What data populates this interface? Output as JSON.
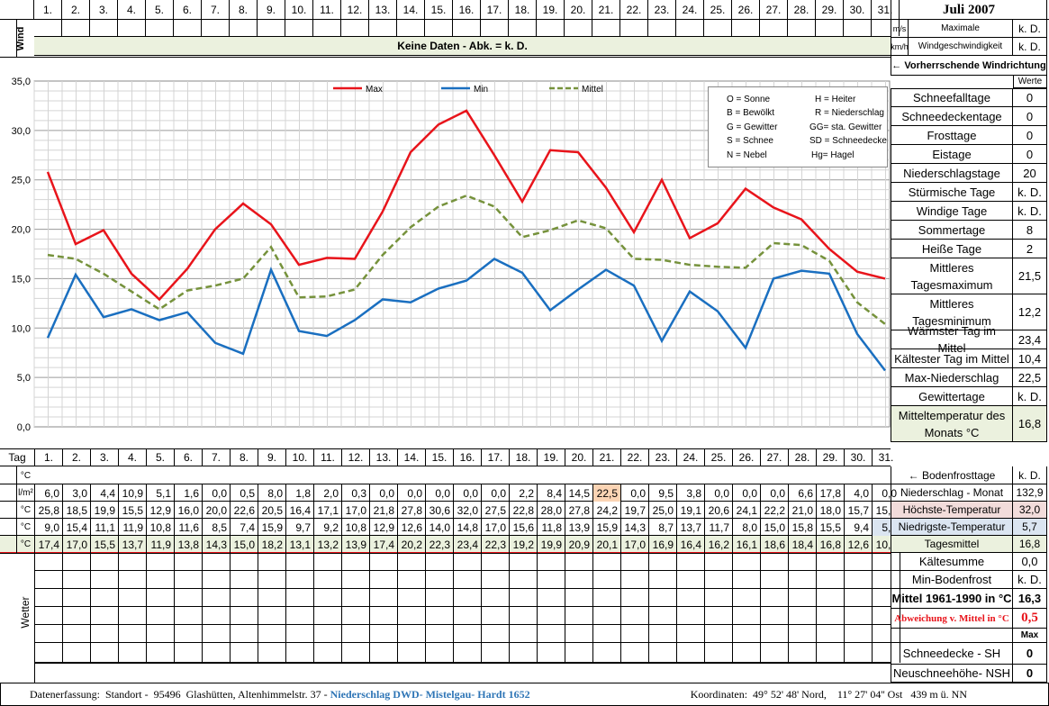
{
  "header": {
    "title": "Juli 2007",
    "wind_label": "Wind",
    "unit_ms": "m/s",
    "unit_kmh": "km/h",
    "max_wind_label_1": "Maximale",
    "max_wind_label_2": "Windgeschwindigkeit",
    "max_wind_ms": "k. D.",
    "max_wind_kmh": "k. D.",
    "no_data_banner": "Keine Daten - Abk. = k. D.",
    "wind_direction": "← Vorherrschende Windrichtung"
  },
  "days": [
    "1.",
    "2.",
    "3.",
    "4.",
    "5.",
    "6.",
    "7.",
    "8.",
    "9.",
    "10.",
    "11.",
    "12.",
    "13.",
    "14.",
    "15.",
    "16.",
    "17.",
    "18.",
    "19.",
    "20.",
    "21.",
    "22.",
    "23.",
    "24.",
    "25.",
    "26.",
    "27.",
    "28.",
    "29.",
    "30.",
    "31."
  ],
  "chart_data": {
    "type": "line",
    "x": [
      1,
      2,
      3,
      4,
      5,
      6,
      7,
      8,
      9,
      10,
      11,
      12,
      13,
      14,
      15,
      16,
      17,
      18,
      19,
      20,
      21,
      22,
      23,
      24,
      25,
      26,
      27,
      28,
      29,
      30,
      31
    ],
    "ylim": [
      0,
      35
    ],
    "yticks": [
      "0,0",
      "5,0",
      "10,0",
      "15,0",
      "20,0",
      "25,0",
      "30,0",
      "35,0"
    ],
    "grid": true,
    "legend": "top",
    "series": [
      {
        "name": "Max",
        "color": "#e8141b",
        "style": "solid",
        "values": [
          25.8,
          18.5,
          19.9,
          15.5,
          12.9,
          16.0,
          20.0,
          22.6,
          20.5,
          16.4,
          17.1,
          17.0,
          21.8,
          27.8,
          30.6,
          32.0,
          27.5,
          22.8,
          28.0,
          27.8,
          24.2,
          19.7,
          25.0,
          19.1,
          20.6,
          24.1,
          22.2,
          21.0,
          18.0,
          15.7,
          15.0
        ]
      },
      {
        "name": "Min",
        "color": "#1a6fc0",
        "style": "solid",
        "values": [
          9.0,
          15.4,
          11.1,
          11.9,
          10.8,
          11.6,
          8.5,
          7.4,
          15.9,
          9.7,
          9.2,
          10.8,
          12.9,
          12.6,
          14.0,
          14.8,
          17.0,
          15.6,
          11.8,
          13.9,
          15.9,
          14.3,
          8.7,
          13.7,
          11.7,
          8.0,
          15.0,
          15.8,
          15.5,
          9.4,
          5.7
        ]
      },
      {
        "name": "Mittel",
        "color": "#76923c",
        "style": "dashed",
        "values": [
          17.4,
          17.0,
          15.5,
          13.7,
          11.9,
          13.8,
          14.3,
          15.0,
          18.2,
          13.1,
          13.2,
          13.9,
          17.4,
          20.2,
          22.3,
          23.4,
          22.3,
          19.2,
          19.9,
          20.9,
          20.1,
          17.0,
          16.9,
          16.4,
          16.2,
          16.1,
          18.6,
          18.4,
          16.8,
          12.6,
          10.4
        ]
      }
    ]
  },
  "weather_legend": [
    [
      "O = Sonne",
      "H = Heiter"
    ],
    [
      "B = Bewölkt",
      "R = Niederschlag"
    ],
    [
      "G = Gewitter",
      "GG= sta. Gewitter"
    ],
    [
      "S = Schnee",
      "SD = Schneedecke"
    ],
    [
      "N = Nebel",
      "Hg= Hagel"
    ]
  ],
  "stats": {
    "werte": "Werte",
    "rows": [
      {
        "label": "Schneefalltage",
        "value": "0"
      },
      {
        "label": "Schneedeckentage",
        "value": "0"
      },
      {
        "label": "Frosttage",
        "value": "0"
      },
      {
        "label": "Eistage",
        "value": "0"
      },
      {
        "label": "Niederschlagstage",
        "value": "20"
      },
      {
        "label": "Stürmische Tage",
        "value": "k. D."
      },
      {
        "label": "Windige Tage",
        "value": "k. D."
      },
      {
        "label": "Sommertage",
        "value": "8"
      },
      {
        "label": "Heiße Tage",
        "value": "2"
      },
      {
        "label": "Mittleres Tagesmaximum",
        "value": "21,5"
      },
      {
        "label": "Mittleres Tagesminimum",
        "value": "12,2"
      },
      {
        "label": "Wärmster Tag im Mittel",
        "value": "23,4"
      },
      {
        "label": "Kältester Tag im Mittel",
        "value": "10,4"
      },
      {
        "label": "Max-Niederschlag",
        "value": "22,5"
      },
      {
        "label": "Gewittertage",
        "value": "k. D."
      },
      {
        "label": "Mitteltemperatur des Monats °C",
        "value": "16,8"
      }
    ]
  },
  "table": {
    "tag_label": "Tag",
    "unit_c": "°C",
    "unit_lm2": "l/m²",
    "bodenfrost_label": "← Bodenfrosttage",
    "bodenfrost_value": "k. D.",
    "precip": [
      "6,0",
      "3,0",
      "4,4",
      "10,9",
      "5,1",
      "1,6",
      "0,0",
      "0,5",
      "8,0",
      "1,8",
      "2,0",
      "0,3",
      "0,0",
      "0,0",
      "0,0",
      "0,0",
      "0,0",
      "2,2",
      "8,4",
      "14,5",
      "22,5",
      "0,0",
      "9,5",
      "3,8",
      "0,0",
      "0,0",
      "0,0",
      "6,6",
      "17,8",
      "4,0",
      "0,0"
    ],
    "tmax": [
      "25,8",
      "18,5",
      "19,9",
      "15,5",
      "12,9",
      "16,0",
      "20,0",
      "22,6",
      "20,5",
      "16,4",
      "17,1",
      "17,0",
      "21,8",
      "27,8",
      "30,6",
      "32,0",
      "27,5",
      "22,8",
      "28,0",
      "27,8",
      "24,2",
      "19,7",
      "25,0",
      "19,1",
      "20,6",
      "24,1",
      "22,2",
      "21,0",
      "18,0",
      "15,7",
      "15,0"
    ],
    "tmin": [
      "9,0",
      "15,4",
      "11,1",
      "11,9",
      "10,8",
      "11,6",
      "8,5",
      "7,4",
      "15,9",
      "9,7",
      "9,2",
      "10,8",
      "12,9",
      "12,6",
      "14,0",
      "14,8",
      "17,0",
      "15,6",
      "11,8",
      "13,9",
      "15,9",
      "14,3",
      "8,7",
      "13,7",
      "11,7",
      "8,0",
      "15,0",
      "15,8",
      "15,5",
      "9,4",
      "5,7"
    ],
    "tmean": [
      "17,4",
      "17,0",
      "15,5",
      "13,7",
      "11,9",
      "13,8",
      "14,3",
      "15,0",
      "18,2",
      "13,1",
      "13,2",
      "13,9",
      "17,4",
      "20,2",
      "22,3",
      "23,4",
      "22,3",
      "19,2",
      "19,9",
      "20,9",
      "20,1",
      "17,0",
      "16,9",
      "16,4",
      "16,2",
      "16,1",
      "18,6",
      "18,4",
      "16,8",
      "12,6",
      "10,4"
    ],
    "summary": [
      {
        "label": "Niederschlag - Monat",
        "value": "132,9"
      },
      {
        "label": "Höchste-Temperatur",
        "value": "32,0"
      },
      {
        "label": "Niedrigste-Temperatur",
        "value": "5,7"
      },
      {
        "label": "Tagesmittel",
        "value": "16,8"
      }
    ],
    "wetter_label": "Wetter"
  },
  "lower_stats": [
    {
      "label": "Kältesumme",
      "value": "0,0"
    },
    {
      "label": "Min-Bodenfrost",
      "value": "k. D."
    },
    {
      "label": "Mittel 1961-1990 in °C",
      "value": "16,3"
    },
    {
      "label": "Abweichung v. Mittel in °C",
      "value": "0,5"
    },
    {
      "label": "",
      "value": "Max"
    },
    {
      "label": "Schneedecke -  SH",
      "value": "0"
    },
    {
      "label": "Neuschneehöhe- NSH",
      "value": "0"
    }
  ],
  "footer": {
    "capture": "Datenerfassung:  Standort -  95496  Glashütten, Altenhimmelstr. 37 - ",
    "source": "Niederschlag DWD- Mistelgau- Hardt 1652",
    "coords": "Koordinaten:  49° 52' 48' Nord,    11° 27' 04'' Ost   439 m ü. NN"
  }
}
